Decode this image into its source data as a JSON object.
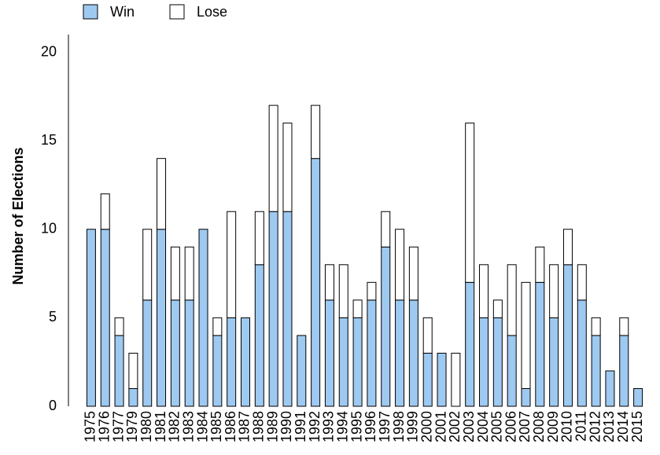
{
  "chart_data": {
    "type": "stacked_bar",
    "y_label": "Number of Elections",
    "categories": [
      "1975",
      "1976",
      "1977",
      "1979",
      "1980",
      "1981",
      "1982",
      "1983",
      "1984",
      "1985",
      "1986",
      "1987",
      "1988",
      "1989",
      "1990",
      "1991",
      "1992",
      "1993",
      "1994",
      "1995",
      "1996",
      "1997",
      "1998",
      "1999",
      "2000",
      "2001",
      "2002",
      "2003",
      "2004",
      "2005",
      "2006",
      "2007",
      "2008",
      "2009",
      "2010",
      "2011",
      "2012",
      "2013",
      "2014",
      "2015"
    ],
    "series": [
      {
        "name": "Win",
        "color": "#9ec9f0",
        "values": [
          10,
          10,
          4,
          1,
          6,
          10,
          6,
          6,
          10,
          4,
          5,
          5,
          8,
          11,
          11,
          4,
          14,
          6,
          5,
          5,
          6,
          9,
          6,
          6,
          3,
          3,
          0,
          7,
          5,
          5,
          4,
          1,
          7,
          5,
          8,
          6,
          4,
          2,
          4,
          1
        ]
      },
      {
        "name": "Lose",
        "color": "#ffffff",
        "values": [
          0,
          2,
          1,
          2,
          4,
          4,
          3,
          3,
          0,
          1,
          6,
          0,
          3,
          6,
          5,
          0,
          3,
          2,
          3,
          1,
          1,
          2,
          4,
          3,
          2,
          0,
          3,
          9,
          3,
          1,
          4,
          6,
          2,
          3,
          2,
          2,
          1,
          0,
          1,
          0
        ]
      }
    ],
    "ylim": [
      0,
      21
    ],
    "yticks": [
      0,
      5,
      10,
      15,
      20
    ],
    "legend": "top-left"
  }
}
